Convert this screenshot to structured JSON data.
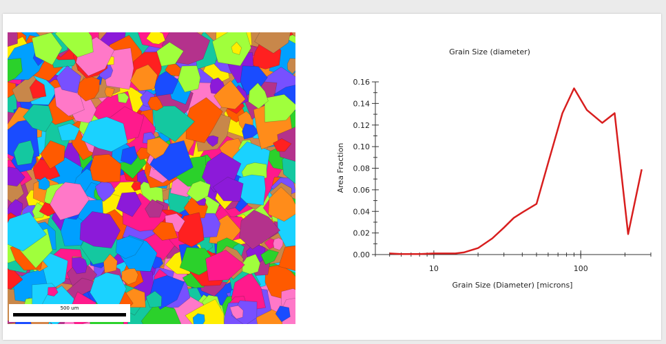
{
  "micrograph": {
    "scale_label": "500 um"
  },
  "colors": {
    "line": "#d81e1e",
    "axis": "#333333",
    "grains": [
      "#ff1a8c",
      "#1ad2ff",
      "#ffee00",
      "#2bd12b",
      "#8c1ad9",
      "#ff2020",
      "#c8874a",
      "#ff8c1a",
      "#1a4cff",
      "#14c8a0",
      "#b4328c",
      "#ff78c8",
      "#a0ff3c",
      "#ff5a00",
      "#7850ff",
      "#00a0ff"
    ]
  },
  "chart_data": {
    "type": "line",
    "title": "Grain Size (diameter)",
    "xlabel": "Grain Size (Diameter) [microns]",
    "ylabel": "Area Fraction",
    "x_scale": "log",
    "xlim": [
      4,
      300
    ],
    "ylim": [
      0,
      0.16
    ],
    "x_ticks": [
      10,
      100
    ],
    "y_ticks": [
      0.0,
      0.02,
      0.04,
      0.06,
      0.08,
      0.1,
      0.12,
      0.14,
      0.16
    ],
    "grid": false,
    "series": [
      {
        "x": [
          5,
          6,
          7,
          8,
          10,
          12,
          14,
          16,
          20,
          25,
          30,
          35,
          40,
          50,
          60,
          75,
          90,
          110,
          140,
          170,
          210,
          260
        ],
        "y": [
          0.001,
          0.0005,
          0.0005,
          0.0005,
          0.001,
          0.001,
          0.001,
          0.002,
          0.006,
          0.015,
          0.025,
          0.034,
          0.039,
          0.047,
          0.085,
          0.131,
          0.154,
          0.134,
          0.122,
          0.131,
          0.019,
          0.079
        ]
      }
    ]
  }
}
